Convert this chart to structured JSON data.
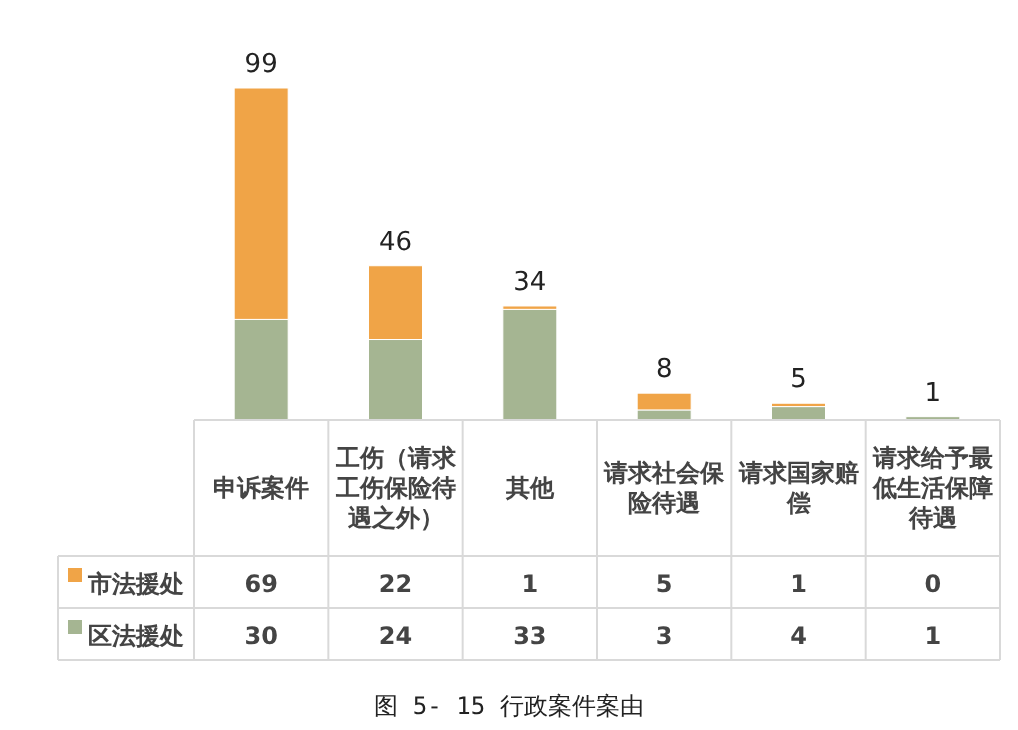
{
  "chart_data": {
    "type": "bar",
    "stacked": true,
    "data_labels": true,
    "legend": "bottom left",
    "categories": [
      "申诉案件",
      "工伤（请求工伤保险待遇之外）",
      "其他",
      "请求社会保险待遇",
      "请求国家赔偿",
      "请求给予最低生活保障待遇"
    ],
    "series": [
      {
        "name": "区法援处",
        "color": "#a5b592",
        "values": [
          30,
          24,
          33,
          3,
          4,
          1
        ]
      },
      {
        "name": "市法援处",
        "color": "#f0a447",
        "values": [
          69,
          22,
          1,
          5,
          1,
          0
        ]
      }
    ],
    "totals": [
      "99",
      "46",
      "34",
      "8",
      "5",
      "1"
    ],
    "annotations": [
      "图 5- 15 行政案件案由"
    ]
  }
}
